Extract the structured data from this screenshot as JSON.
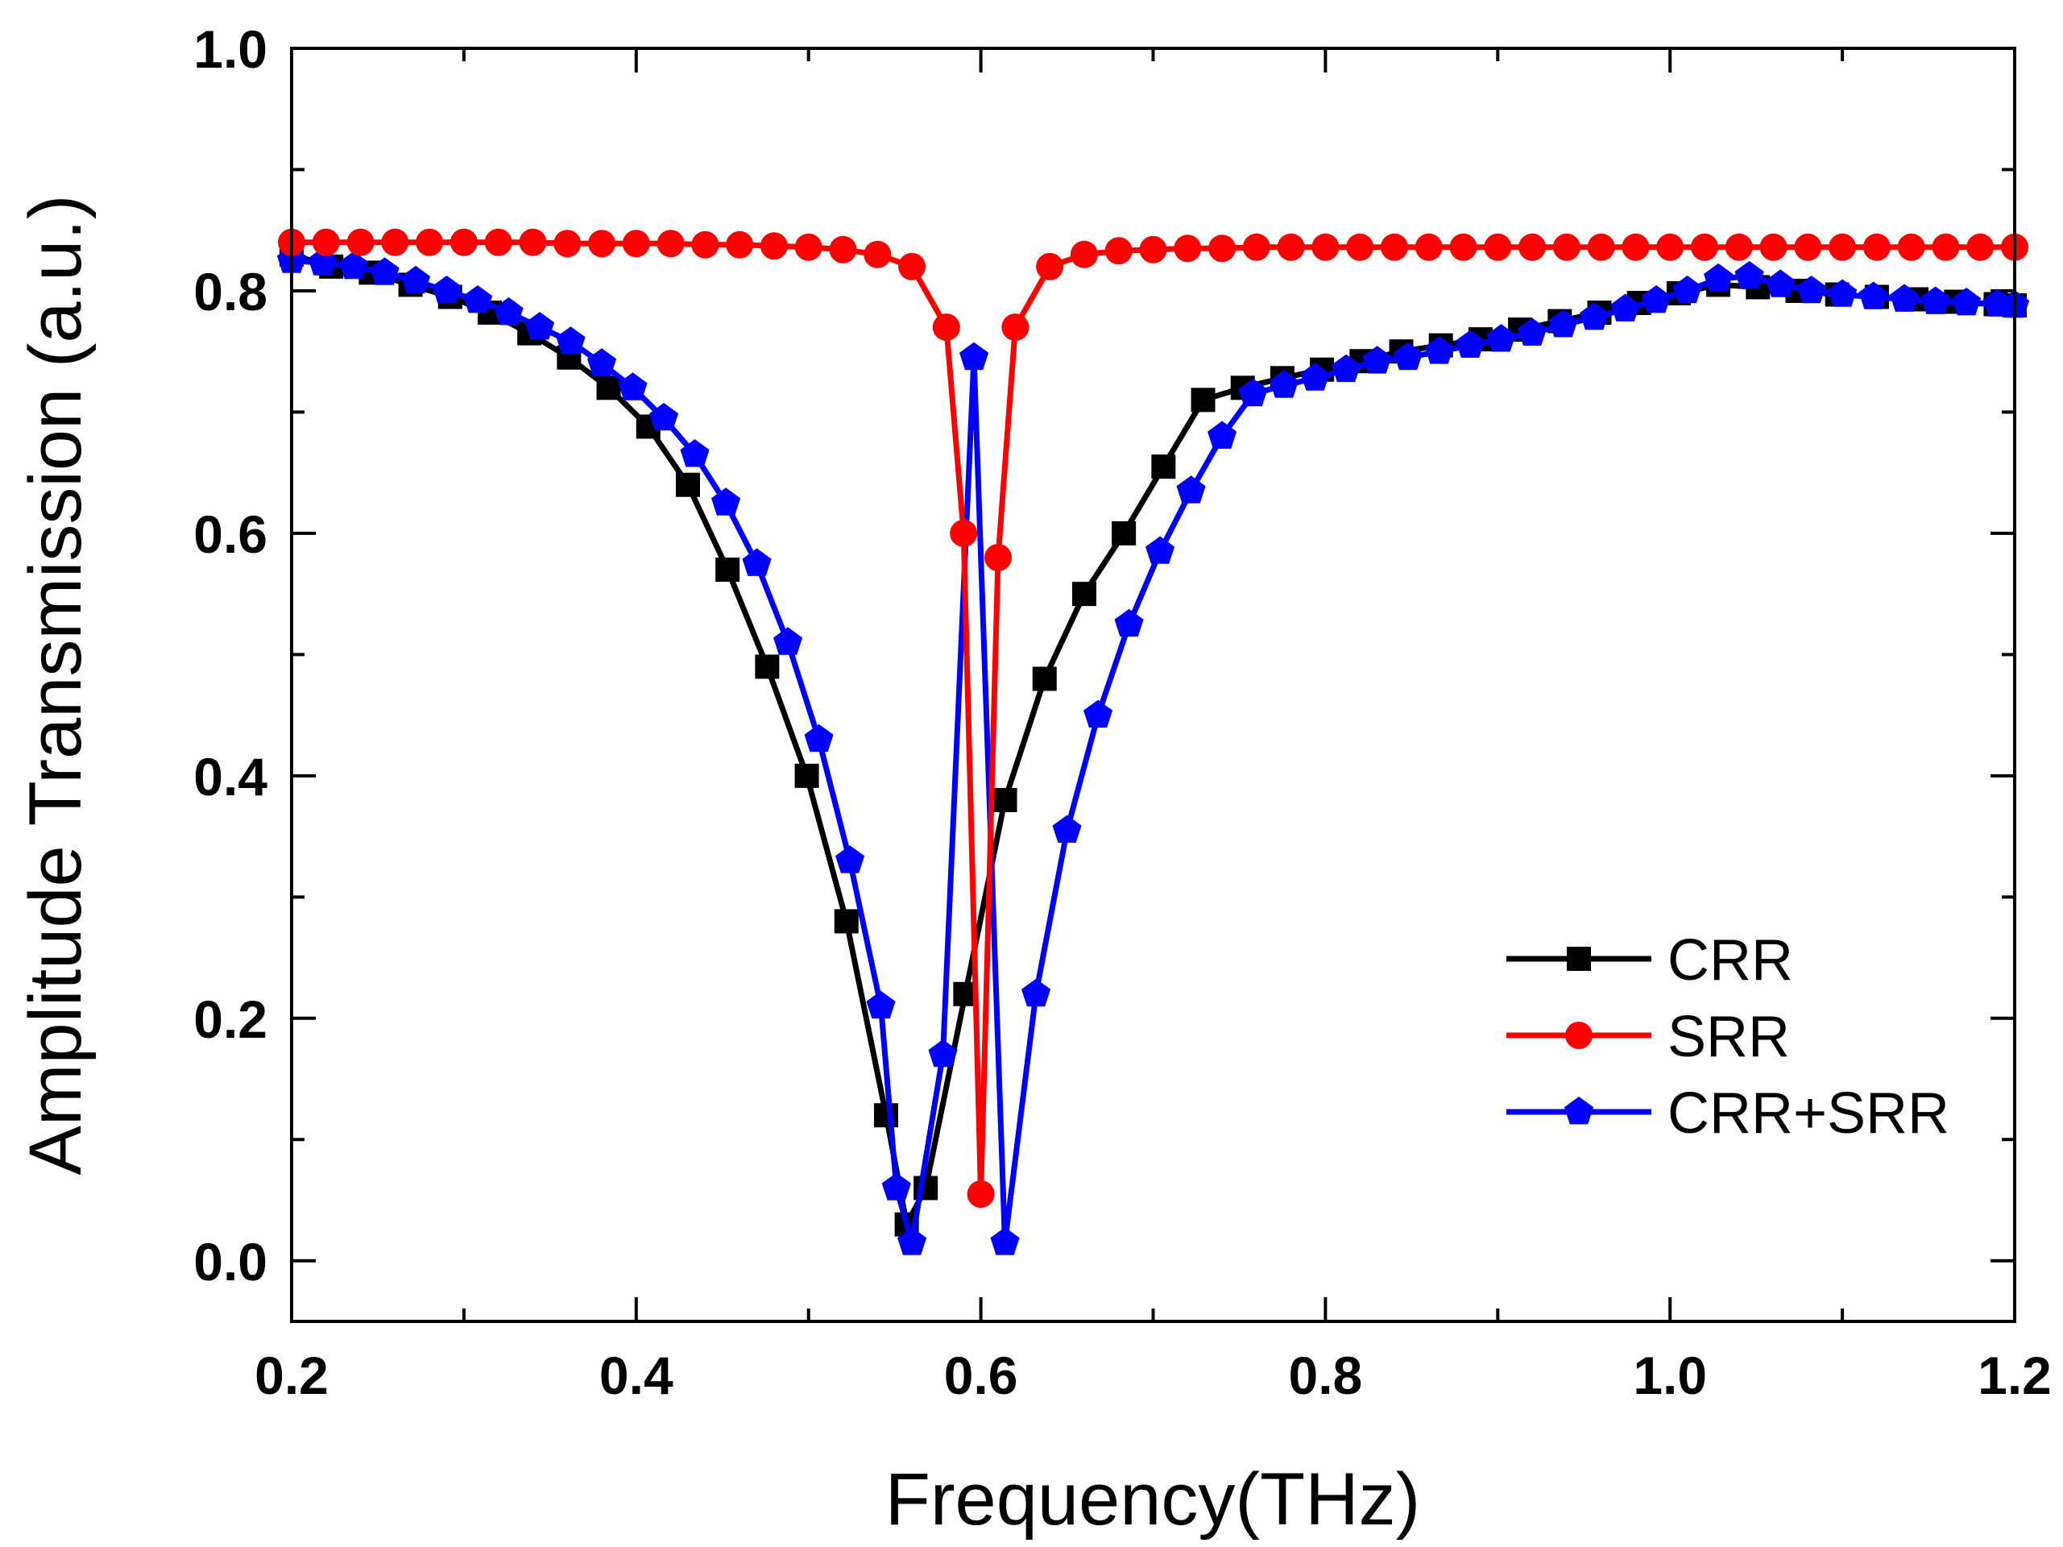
{
  "chart_data": {
    "type": "line",
    "xlabel": "Frequency(THz)",
    "ylabel": "Amplitude Transmission (a.u.)",
    "xlim": [
      0.2,
      1.2
    ],
    "ylim": [
      -0.05,
      1.0
    ],
    "x_ticks": [
      0.2,
      0.4,
      0.6,
      0.8,
      1.0,
      1.2
    ],
    "x_tick_labels": [
      "0.2",
      "0.4",
      "0.6",
      "0.8",
      "1.0",
      "1.2"
    ],
    "y_ticks": [
      0.0,
      0.2,
      0.4,
      0.6,
      0.8,
      1.0
    ],
    "y_tick_labels": [
      "0.0",
      "0.2",
      "0.4",
      "0.6",
      "0.8",
      "1.0"
    ],
    "legend_position": "lower-right",
    "series": [
      {
        "name": "CRR",
        "color": "#000000",
        "marker": "square",
        "x": [
          0.2,
          0.223,
          0.246,
          0.269,
          0.292,
          0.315,
          0.338,
          0.361,
          0.384,
          0.407,
          0.43,
          0.453,
          0.476,
          0.499,
          0.522,
          0.545,
          0.557,
          0.568,
          0.591,
          0.614,
          0.637,
          0.66,
          0.683,
          0.706,
          0.729,
          0.752,
          0.775,
          0.798,
          0.821,
          0.844,
          0.867,
          0.89,
          0.913,
          0.936,
          0.959,
          0.982,
          1.005,
          1.028,
          1.051,
          1.074,
          1.097,
          1.12,
          1.143,
          1.166,
          1.189,
          1.2
        ],
        "y": [
          0.83,
          0.82,
          0.815,
          0.805,
          0.795,
          0.782,
          0.765,
          0.745,
          0.72,
          0.688,
          0.64,
          0.57,
          0.49,
          0.4,
          0.28,
          0.12,
          0.03,
          0.06,
          0.22,
          0.38,
          0.48,
          0.55,
          0.6,
          0.655,
          0.71,
          0.72,
          0.728,
          0.735,
          0.742,
          0.75,
          0.755,
          0.76,
          0.768,
          0.775,
          0.782,
          0.79,
          0.798,
          0.805,
          0.803,
          0.8,
          0.797,
          0.795,
          0.793,
          0.791,
          0.789,
          0.788
        ]
      },
      {
        "name": "SRR",
        "color": "#ff0000",
        "marker": "circle",
        "x": [
          0.2,
          0.22,
          0.24,
          0.26,
          0.28,
          0.3,
          0.32,
          0.34,
          0.36,
          0.38,
          0.4,
          0.42,
          0.44,
          0.46,
          0.48,
          0.5,
          0.52,
          0.54,
          0.56,
          0.58,
          0.59,
          0.6,
          0.61,
          0.62,
          0.64,
          0.66,
          0.68,
          0.7,
          0.72,
          0.74,
          0.76,
          0.78,
          0.8,
          0.82,
          0.84,
          0.86,
          0.88,
          0.9,
          0.92,
          0.94,
          0.96,
          0.98,
          1.0,
          1.02,
          1.04,
          1.06,
          1.08,
          1.1,
          1.12,
          1.14,
          1.16,
          1.18,
          1.2
        ],
        "y": [
          0.84,
          0.84,
          0.84,
          0.84,
          0.84,
          0.84,
          0.84,
          0.84,
          0.839,
          0.839,
          0.839,
          0.839,
          0.838,
          0.838,
          0.837,
          0.836,
          0.834,
          0.83,
          0.82,
          0.77,
          0.6,
          0.055,
          0.58,
          0.77,
          0.82,
          0.83,
          0.833,
          0.834,
          0.835,
          0.835,
          0.836,
          0.836,
          0.836,
          0.836,
          0.836,
          0.836,
          0.836,
          0.836,
          0.836,
          0.836,
          0.836,
          0.836,
          0.836,
          0.836,
          0.836,
          0.836,
          0.836,
          0.836,
          0.836,
          0.836,
          0.836,
          0.836,
          0.836
        ]
      },
      {
        "name": "CRR+SRR",
        "color": "#0000ff",
        "marker": "pentagon",
        "x": [
          0.2,
          0.218,
          0.236,
          0.254,
          0.272,
          0.29,
          0.308,
          0.326,
          0.344,
          0.362,
          0.38,
          0.398,
          0.416,
          0.434,
          0.452,
          0.47,
          0.488,
          0.506,
          0.524,
          0.542,
          0.551,
          0.56,
          0.578,
          0.596,
          0.614,
          0.632,
          0.65,
          0.668,
          0.686,
          0.704,
          0.722,
          0.74,
          0.758,
          0.776,
          0.794,
          0.812,
          0.83,
          0.848,
          0.866,
          0.884,
          0.902,
          0.92,
          0.938,
          0.956,
          0.974,
          0.992,
          1.01,
          1.028,
          1.046,
          1.064,
          1.082,
          1.1,
          1.118,
          1.136,
          1.154,
          1.172,
          1.19,
          1.2
        ],
        "y": [
          0.825,
          0.823,
          0.82,
          0.815,
          0.808,
          0.8,
          0.792,
          0.782,
          0.77,
          0.758,
          0.74,
          0.72,
          0.695,
          0.665,
          0.625,
          0.575,
          0.51,
          0.43,
          0.33,
          0.21,
          0.06,
          0.015,
          0.17,
          0.745,
          0.015,
          0.22,
          0.355,
          0.45,
          0.525,
          0.585,
          0.635,
          0.68,
          0.715,
          0.722,
          0.728,
          0.735,
          0.742,
          0.745,
          0.75,
          0.755,
          0.76,
          0.765,
          0.772,
          0.778,
          0.785,
          0.792,
          0.8,
          0.81,
          0.812,
          0.805,
          0.8,
          0.797,
          0.795,
          0.793,
          0.791,
          0.79,
          0.789,
          0.788
        ]
      }
    ]
  }
}
